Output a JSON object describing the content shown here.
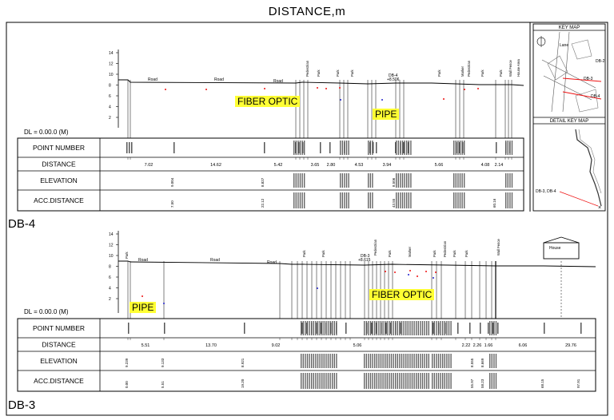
{
  "title": "DISTANCE,m",
  "keymap": {
    "key_map_label": "KEY MAP",
    "detail_key_map_label": "DETAIL KEY MAP",
    "detail_marker_label": "DB-3, DB-4",
    "road_label": "Lane",
    "db2": "DB-2",
    "db3": "DB-3",
    "db4": "DB-4"
  },
  "db4": {
    "section_label": "DB-4",
    "dl_label": "DL = 0.00.0 (M)",
    "row_labels": [
      "POINT NUMBER",
      "DISTANCE",
      "ELEVATION",
      "ACC.DISTANCE"
    ],
    "y_ticks": [
      "14",
      "12",
      "10",
      "8",
      "6",
      "4",
      "2"
    ],
    "profile_texts": [
      "Road",
      "Road",
      "Road",
      "Pedestrian",
      "Park",
      "Park",
      "Park",
      "DB-4",
      "+8.506",
      "Park",
      "Marker",
      "Pedestrian",
      "Park",
      "Park",
      "Wall Fence",
      "House Area"
    ],
    "highlights": [
      "FIBER OPTIC",
      "PIPE"
    ],
    "distances": [
      "7.02",
      "14.62",
      "5.42",
      "3.65",
      "2.80",
      "4.53",
      "3.94",
      "5.66",
      "4.08",
      "2.14"
    ],
    "elevations": [
      "9.004",
      "8.827",
      "8.506"
    ],
    "acc_distances": [
      "7.50",
      "22.12",
      "43.55",
      "60.16"
    ]
  },
  "db3": {
    "section_label": "DB-3",
    "dl_label": "DL = 0.00.0 (M)",
    "row_labels": [
      "POINT NUMBER",
      "DISTANCE",
      "ELEVATION",
      "ACC.DISTANCE"
    ],
    "y_ticks": [
      "14",
      "12",
      "10",
      "8",
      "6",
      "4",
      "2"
    ],
    "profile_texts": [
      "Park",
      "Road",
      "Road",
      "Road",
      "Park",
      "Park",
      "DB-3",
      "+8.615",
      "Pedestrian",
      "Park",
      "Marker",
      "Park",
      "Pedestrian",
      "Park",
      "Park",
      "Wall Fence",
      "House"
    ],
    "highlights": [
      "PIPE",
      "FIBER OPTIC"
    ],
    "distances": [
      "5.51",
      "13.70",
      "9.02",
      "5.06",
      "2.22",
      "2.26",
      "1.66",
      "6.06",
      "29.76"
    ],
    "elevations": [
      "9.239",
      "9.133",
      "8.921",
      "8.555",
      "8.669"
    ],
    "acc_distances": [
      "0.00",
      "5.51",
      "19.20",
      "55.97",
      "58.23",
      "68.15",
      "97.91"
    ]
  }
}
